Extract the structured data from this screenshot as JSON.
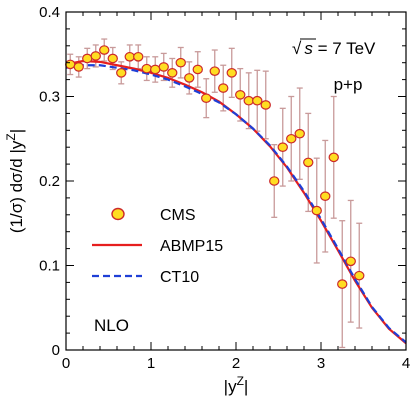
{
  "chart_data": {
    "type": "scatter",
    "xlabel": "|y",
    "xlabel_sup": "Z",
    "xlabel_end": "|",
    "ylabel": "(1/σ) dσ/d |y",
    "ylabel_sup": "Z",
    "ylabel_end": "|",
    "xlim": [
      0,
      4
    ],
    "ylim": [
      0,
      0.4
    ],
    "x_ticks": [
      0,
      1,
      2,
      3,
      4
    ],
    "x_tick_labels": [
      "0",
      "1",
      "2",
      "3",
      "4"
    ],
    "y_ticks": [
      0,
      0.1,
      0.2,
      0.3,
      0.4
    ],
    "y_tick_labels": [
      "0",
      "0.1",
      "0.2",
      "0.3",
      "0.4"
    ],
    "grid": false,
    "legend_position": "left",
    "annotations": {
      "energy_sqrt": "√",
      "energy_s": "s",
      "energy_rest": " = 7 TeV",
      "process": "p+p",
      "order": "NLO"
    },
    "colors": {
      "cms_marker_fill": "#ffdd22",
      "cms_marker_edge": "#cc2a2a",
      "error_bar": "#c89a9a",
      "abmp15": "#e61e1e",
      "ct10": "#1f3fd6",
      "order_label": "#e61e1e"
    },
    "series": [
      {
        "name": "CMS",
        "kind": "points",
        "x": [
          0.05,
          0.15,
          0.25,
          0.35,
          0.45,
          0.55,
          0.65,
          0.75,
          0.85,
          0.95,
          1.05,
          1.15,
          1.25,
          1.35,
          1.45,
          1.55,
          1.65,
          1.75,
          1.85,
          1.95,
          2.05,
          2.15,
          2.25,
          2.35,
          2.45,
          2.55,
          2.65,
          2.75,
          2.85,
          2.95,
          3.05,
          3.15,
          3.25,
          3.35,
          3.45
        ],
        "y": [
          0.338,
          0.335,
          0.345,
          0.348,
          0.355,
          0.345,
          0.328,
          0.347,
          0.347,
          0.333,
          0.332,
          0.335,
          0.328,
          0.34,
          0.322,
          0.332,
          0.298,
          0.33,
          0.31,
          0.328,
          0.302,
          0.295,
          0.295,
          0.29,
          0.2,
          0.24,
          0.25,
          0.256,
          0.222,
          0.165,
          0.182,
          0.228,
          0.078,
          0.105,
          0.088
        ],
        "err": [
          0.012,
          0.012,
          0.012,
          0.013,
          0.013,
          0.013,
          0.013,
          0.014,
          0.014,
          0.014,
          0.015,
          0.016,
          0.017,
          0.018,
          0.019,
          0.021,
          0.023,
          0.025,
          0.027,
          0.029,
          0.031,
          0.033,
          0.036,
          0.04,
          0.043,
          0.046,
          0.05,
          0.054,
          0.058,
          0.062,
          0.066,
          0.072,
          0.075,
          0.072,
          0.062
        ]
      },
      {
        "name": "ABMP15",
        "kind": "line",
        "x": [
          0.0,
          0.2,
          0.4,
          0.6,
          0.8,
          1.0,
          1.2,
          1.4,
          1.6,
          1.8,
          2.0,
          2.2,
          2.4,
          2.6,
          2.8,
          3.0,
          3.2,
          3.4,
          3.6,
          3.8,
          4.0
        ],
        "y": [
          0.338,
          0.342,
          0.341,
          0.337,
          0.333,
          0.328,
          0.322,
          0.314,
          0.305,
          0.294,
          0.279,
          0.262,
          0.241,
          0.216,
          0.186,
          0.153,
          0.118,
          0.082,
          0.05,
          0.025,
          0.008
        ]
      },
      {
        "name": "CT10",
        "kind": "line",
        "x": [
          0.0,
          0.2,
          0.4,
          0.6,
          0.8,
          1.0,
          1.2,
          1.4,
          1.6,
          1.8,
          2.0,
          2.2,
          2.4,
          2.6,
          2.8,
          3.0,
          3.2,
          3.4,
          3.6,
          3.8,
          4.0
        ],
        "y": [
          0.334,
          0.337,
          0.337,
          0.334,
          0.331,
          0.326,
          0.32,
          0.312,
          0.303,
          0.293,
          0.279,
          0.262,
          0.242,
          0.217,
          0.188,
          0.155,
          0.12,
          0.084,
          0.051,
          0.026,
          0.009
        ]
      }
    ]
  }
}
